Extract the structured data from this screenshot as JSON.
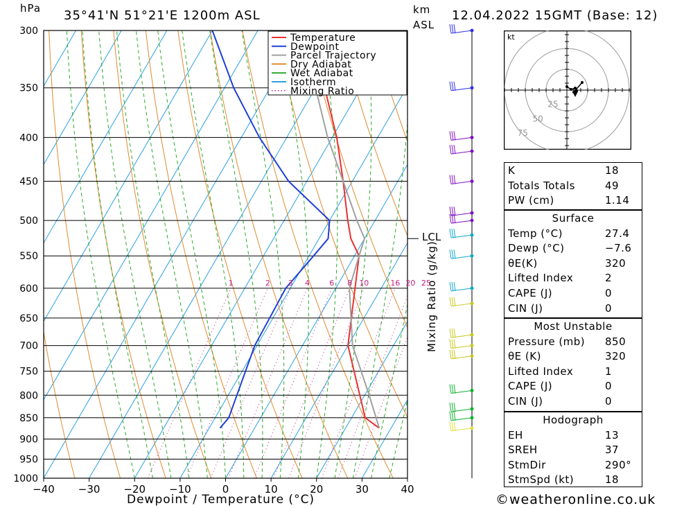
{
  "header": {
    "unit_hpa": "hPa",
    "location": "35°41'N  51°21'E  1200m  ASL",
    "unit_km": "km",
    "unit_asl": "ASL",
    "datetime": "12.04.2022  15GMT  (Base: 12)"
  },
  "footer": {
    "copyright": "©weatheronline.co.uk"
  },
  "chart_data": {
    "type": "line",
    "title": "",
    "xlabel": "Dewpoint / Temperature (°C)",
    "ylabel": "hPa",
    "right_label": "Mixing Ratio (g/kg)",
    "xlim": [
      -40,
      40
    ],
    "ylim": [
      1000,
      300
    ],
    "x_ticks": [
      "−40",
      "−30",
      "−20",
      "−10",
      "0",
      "10",
      "20",
      "30",
      "40"
    ],
    "y_ticks": [
      300,
      350,
      400,
      450,
      500,
      550,
      600,
      650,
      700,
      750,
      800,
      850,
      900,
      950,
      1000
    ],
    "lcl_label": "LCL",
    "lcl_pressure": 525,
    "mixing_ratio_labels": [
      "1",
      "2",
      "3",
      "4",
      "6",
      "8",
      "10",
      "16",
      "20",
      "25"
    ],
    "legend": [
      {
        "name": "Temperature",
        "color": "#e83030",
        "style": "solid"
      },
      {
        "name": "Dewpoint",
        "color": "#1e3fd8",
        "style": "solid"
      },
      {
        "name": "Parcel Trajectory",
        "color": "#a0a0a0",
        "style": "solid"
      },
      {
        "name": "Dry Adiabat",
        "color": "#e08a30",
        "style": "solid"
      },
      {
        "name": "Wet Adiabat",
        "color": "#2aaa2a",
        "style": "solid"
      },
      {
        "name": "Isotherm",
        "color": "#2aa0e0",
        "style": "solid"
      },
      {
        "name": "Mixing Ratio",
        "color": "#c02080",
        "style": "dotted"
      }
    ],
    "series": [
      {
        "name": "Temperature",
        "color": "#e83030",
        "points": [
          [
            874,
            27.4
          ],
          [
            850,
            23
          ],
          [
            700,
            10
          ],
          [
            550,
            1
          ],
          [
            525,
            -3
          ],
          [
            500,
            -6
          ],
          [
            450,
            -12
          ],
          [
            400,
            -19
          ],
          [
            350,
            -28
          ],
          [
            300,
            -38
          ]
        ]
      },
      {
        "name": "Dewpoint",
        "color": "#1e3fd8",
        "points": [
          [
            874,
            -7.6
          ],
          [
            850,
            -7
          ],
          [
            700,
            -10.5
          ],
          [
            600,
            -11
          ],
          [
            550,
            -9
          ],
          [
            525,
            -8
          ],
          [
            500,
            -10
          ],
          [
            450,
            -24
          ],
          [
            400,
            -36
          ],
          [
            350,
            -48
          ],
          [
            300,
            -60
          ]
        ]
      },
      {
        "name": "Parcel Trajectory",
        "color": "#a0a0a0",
        "points": [
          [
            874,
            27.4
          ],
          [
            800,
            21
          ],
          [
            700,
            11
          ],
          [
            600,
            3
          ],
          [
            550,
            1
          ],
          [
            525,
            0
          ],
          [
            500,
            -4
          ],
          [
            450,
            -12
          ],
          [
            400,
            -21
          ],
          [
            350,
            -30
          ],
          [
            300,
            -42
          ]
        ]
      }
    ],
    "wind_barb_pressures": [
      300,
      350,
      400,
      415,
      450,
      490,
      500,
      520,
      550,
      600,
      625,
      680,
      700,
      720,
      790,
      830,
      850,
      874
    ]
  },
  "hodograph": {
    "unit": "kt",
    "ring_labels": [
      "25",
      "50",
      "75"
    ]
  },
  "indices": [
    {
      "key": "K",
      "value": "18"
    },
    {
      "key": "Totals Totals",
      "value": "49"
    },
    {
      "key": "PW (cm)",
      "value": "1.14"
    }
  ],
  "surface": {
    "title": "Surface",
    "rows": [
      {
        "key": "Temp (°C)",
        "value": "27.4"
      },
      {
        "key": "Dewp (°C)",
        "value": "−7.6"
      },
      {
        "key": "θE(K)",
        "value": "320"
      },
      {
        "key": "Lifted Index",
        "value": "2"
      },
      {
        "key": "CAPE (J)",
        "value": "0"
      },
      {
        "key": "CIN (J)",
        "value": "0"
      }
    ]
  },
  "most_unstable": {
    "title": "Most Unstable",
    "rows": [
      {
        "key": "Pressure (mb)",
        "value": "850"
      },
      {
        "key": "θE (K)",
        "value": "320"
      },
      {
        "key": "Lifted Index",
        "value": "1"
      },
      {
        "key": "CAPE (J)",
        "value": "0"
      },
      {
        "key": "CIN (J)",
        "value": "0"
      }
    ]
  },
  "hodograph_box": {
    "title": "Hodograph",
    "rows": [
      {
        "key": "EH",
        "value": "13"
      },
      {
        "key": "SREH",
        "value": "37"
      },
      {
        "key": "StmDir",
        "value": "290°"
      },
      {
        "key": "StmSpd (kt)",
        "value": "18"
      }
    ]
  }
}
